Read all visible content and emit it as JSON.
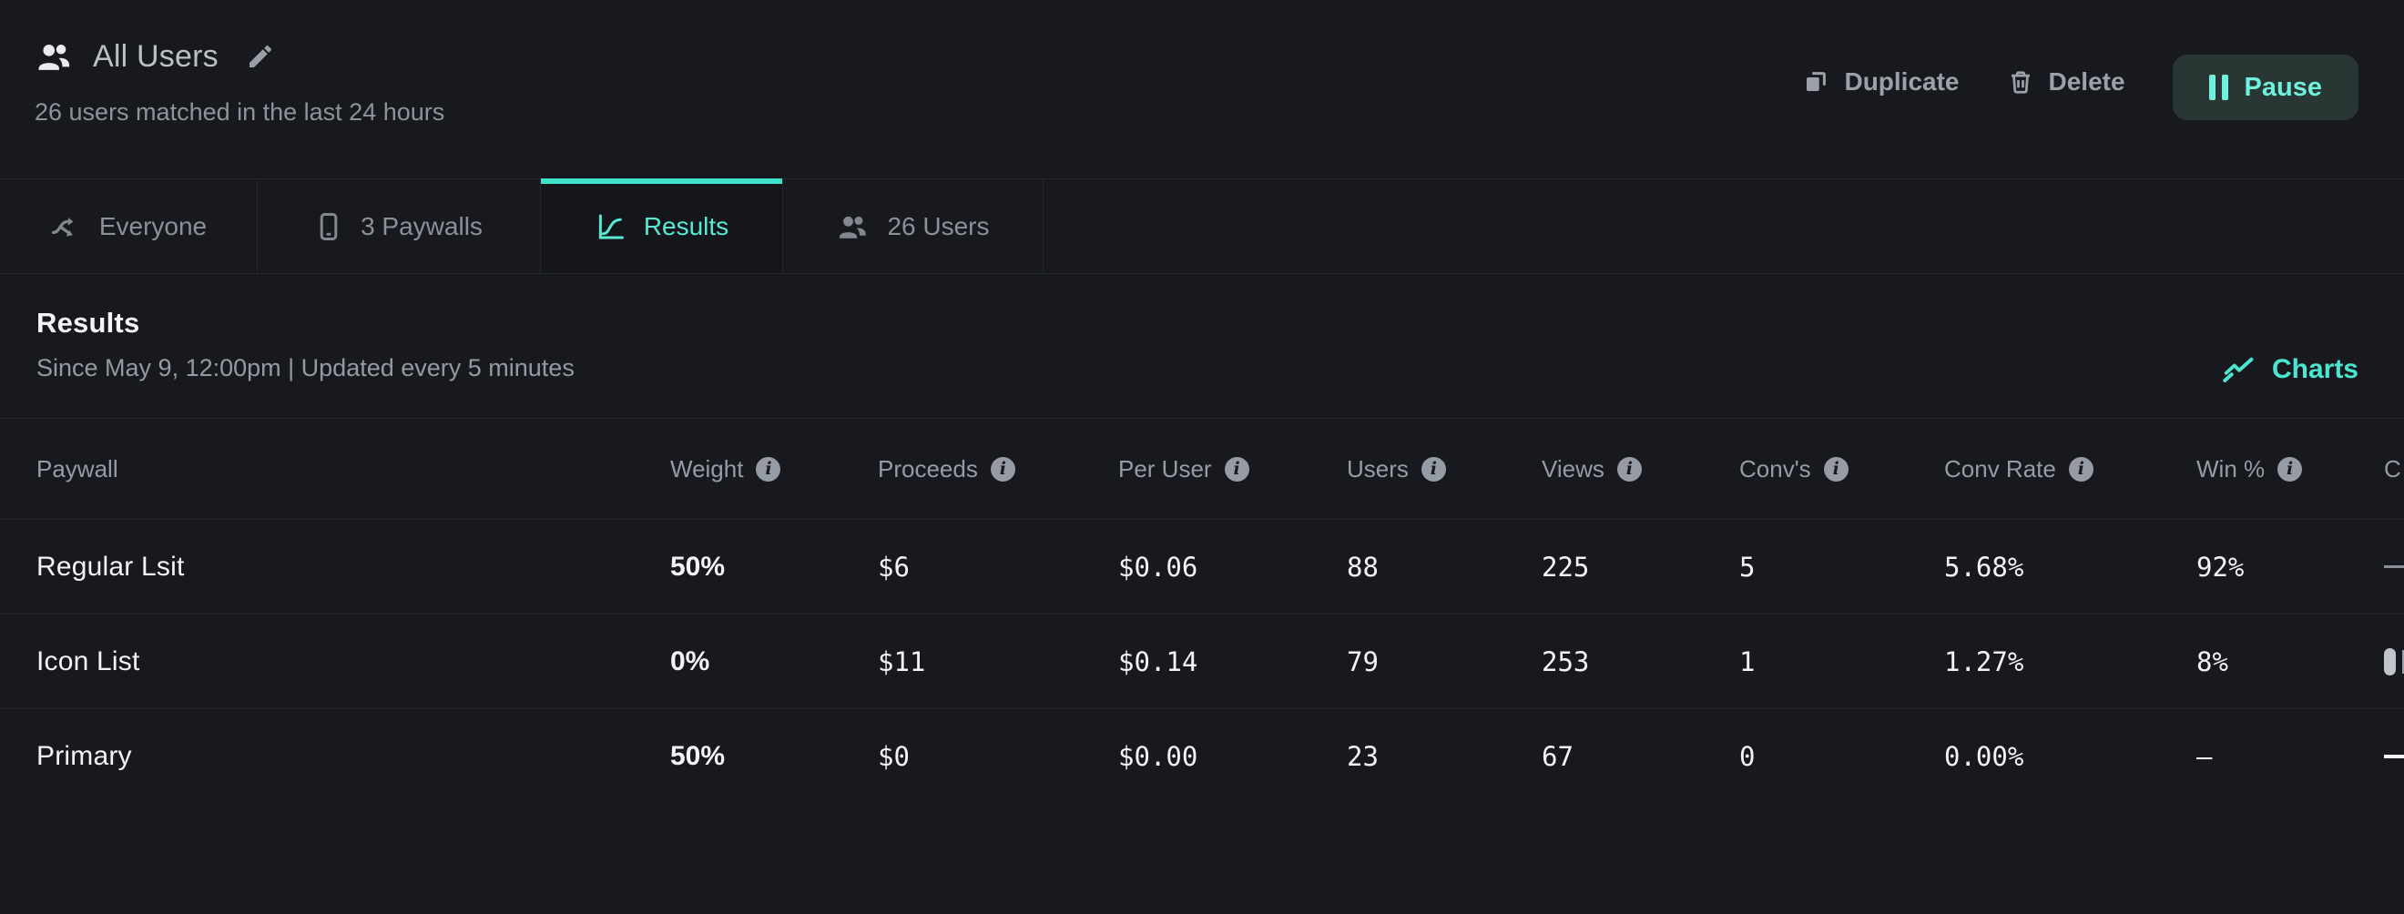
{
  "header": {
    "title": "All Users",
    "subtitle": "26 users matched in the last 24 hours",
    "actions": {
      "duplicate": "Duplicate",
      "delete": "Delete",
      "pause": "Pause"
    }
  },
  "tabs": [
    {
      "label": "Everyone",
      "icon": "split-icon",
      "active": false
    },
    {
      "label": "3 Paywalls",
      "icon": "phone-icon",
      "active": false
    },
    {
      "label": "Results",
      "icon": "line-chart-icon",
      "active": true
    },
    {
      "label": "26 Users",
      "icon": "users-icon",
      "active": false
    }
  ],
  "results": {
    "title": "Results",
    "subtitle": "Since May 9, 12:00pm | Updated every 5 minutes",
    "charts_label": "Charts"
  },
  "table": {
    "columns": [
      {
        "key": "paywall",
        "label": "Paywall",
        "info": false
      },
      {
        "key": "weight",
        "label": "Weight",
        "info": true
      },
      {
        "key": "proceeds",
        "label": "Proceeds",
        "info": true
      },
      {
        "key": "per_user",
        "label": "Per User",
        "info": true
      },
      {
        "key": "users",
        "label": "Users",
        "info": true
      },
      {
        "key": "views",
        "label": "Views",
        "info": true
      },
      {
        "key": "convs",
        "label": "Conv's",
        "info": true
      },
      {
        "key": "conv_rate",
        "label": "Conv Rate",
        "info": true
      },
      {
        "key": "win",
        "label": "Win %",
        "info": true
      },
      {
        "key": "extra",
        "label": "C",
        "info": false
      }
    ],
    "rows": [
      {
        "paywall": "Regular Lsit",
        "weight": "50%",
        "proceeds": "$6",
        "per_user": "$0.06",
        "users": "88",
        "views": "225",
        "convs": "5",
        "conv_rate": "5.68%",
        "win": "92%",
        "extra": "–",
        "extra_style": "dash-dim"
      },
      {
        "paywall": "Icon List",
        "weight": "0%",
        "proceeds": "$11",
        "per_user": "$0.14",
        "users": "79",
        "views": "253",
        "convs": "1",
        "conv_rate": "1.27%",
        "win": "8%",
        "extra": "",
        "extra_style": "badge"
      },
      {
        "paywall": "Primary",
        "weight": "50%",
        "proceeds": "$0",
        "per_user": "$0.00",
        "users": "23",
        "views": "67",
        "convs": "0",
        "conv_rate": "0.00%",
        "win": "–",
        "extra": "–",
        "extra_style": "dash"
      }
    ]
  },
  "colors": {
    "background": "#17191e",
    "accent_teal": "#58ead4",
    "tab_active_border": "#3ee2ca",
    "pause_bg": "#283733",
    "border": "#24272d",
    "text_muted": "#969ca5"
  }
}
